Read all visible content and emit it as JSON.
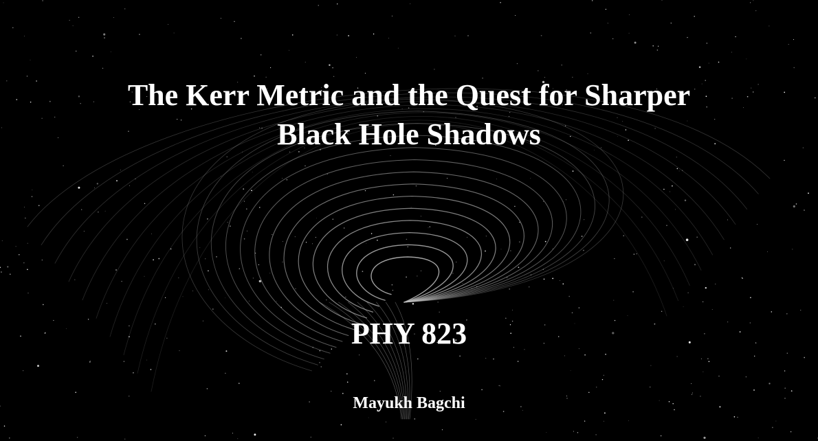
{
  "slide": {
    "title_line1": "The Kerr Metric and the Quest for Sharper",
    "title_line2": "Black Hole Shadows",
    "course": "PHY 823",
    "author": "Mayukh Bagchi"
  },
  "colors": {
    "background": "#000000",
    "text": "#ffffff",
    "field_lines": "#bdbdbd",
    "stars": "#ffffff"
  },
  "background_image": {
    "icon": "black-hole-field-lines-starfield"
  }
}
